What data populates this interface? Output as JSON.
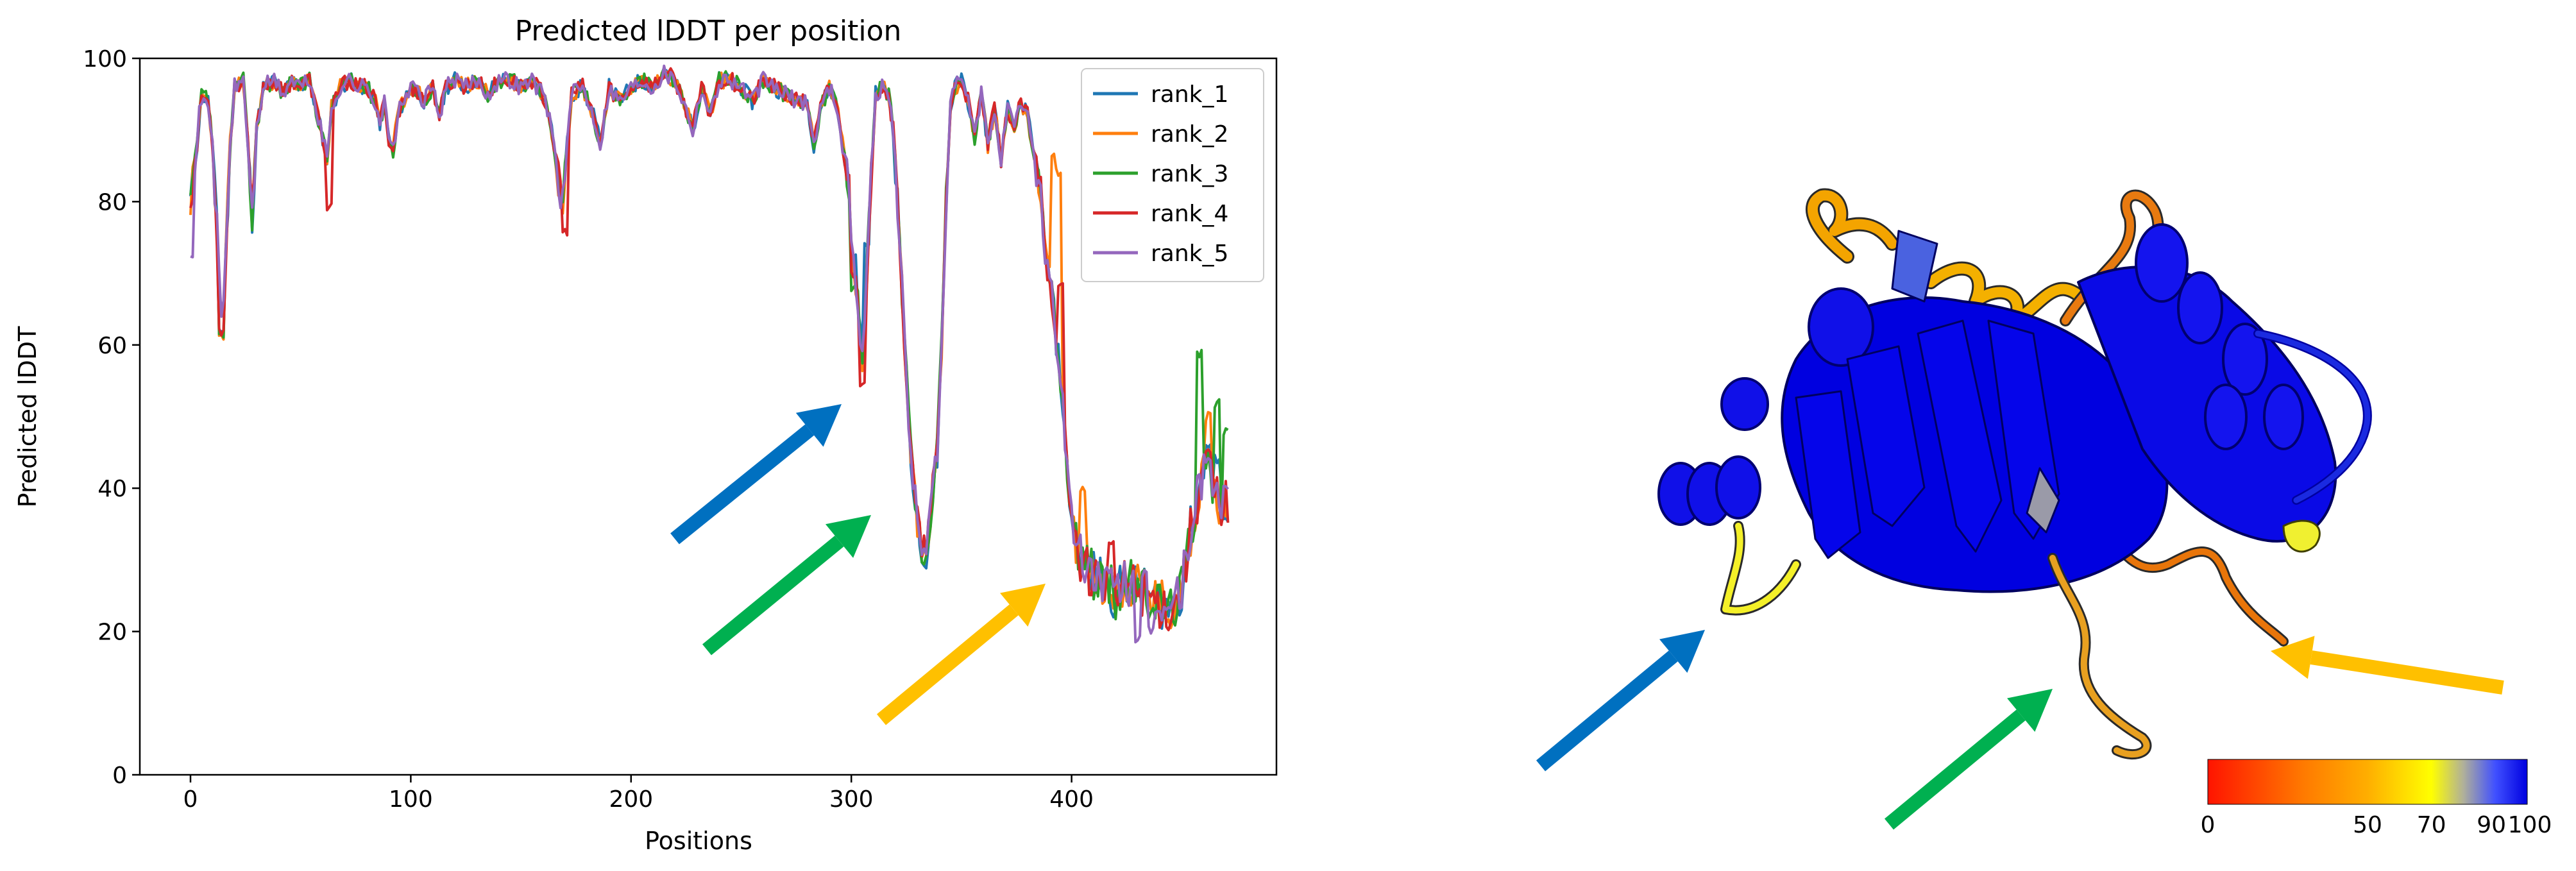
{
  "chart_data": {
    "type": "line",
    "title": "Predicted lDDT per position",
    "xlabel": "Positions",
    "ylabel": "Predicted lDDT",
    "xlim": [
      -23,
      493
    ],
    "ylim": [
      0,
      100
    ],
    "xticks": [
      0,
      100,
      200,
      300,
      400
    ],
    "yticks": [
      0,
      20,
      40,
      60,
      80,
      100
    ],
    "grid": false,
    "legend_position": "top-right",
    "profile_knots": [
      [
        0,
        80
      ],
      [
        3,
        88
      ],
      [
        5,
        95
      ],
      [
        8,
        94
      ],
      [
        10,
        88
      ],
      [
        12,
        76
      ],
      [
        14,
        63
      ],
      [
        16,
        72
      ],
      [
        18,
        88
      ],
      [
        20,
        96
      ],
      [
        24,
        97
      ],
      [
        26,
        88
      ],
      [
        28,
        78
      ],
      [
        30,
        90
      ],
      [
        33,
        96
      ],
      [
        38,
        97
      ],
      [
        42,
        95
      ],
      [
        46,
        97
      ],
      [
        50,
        96
      ],
      [
        54,
        97
      ],
      [
        57,
        93
      ],
      [
        60,
        89
      ],
      [
        62,
        86
      ],
      [
        64,
        93
      ],
      [
        68,
        96
      ],
      [
        72,
        97
      ],
      [
        76,
        96
      ],
      [
        80,
        96
      ],
      [
        84,
        94
      ],
      [
        86,
        91
      ],
      [
        88,
        94
      ],
      [
        90,
        89
      ],
      [
        92,
        87
      ],
      [
        94,
        92
      ],
      [
        98,
        95
      ],
      [
        102,
        96
      ],
      [
        106,
        94
      ],
      [
        110,
        96
      ],
      [
        113,
        92
      ],
      [
        116,
        96
      ],
      [
        120,
        97
      ],
      [
        125,
        96
      ],
      [
        130,
        97
      ],
      [
        135,
        95
      ],
      [
        140,
        97
      ],
      [
        145,
        97
      ],
      [
        150,
        96
      ],
      [
        155,
        97
      ],
      [
        160,
        95
      ],
      [
        163,
        92
      ],
      [
        165,
        88
      ],
      [
        167,
        83
      ],
      [
        169,
        80
      ],
      [
        171,
        88
      ],
      [
        173,
        95
      ],
      [
        178,
        96
      ],
      [
        183,
        92
      ],
      [
        186,
        88
      ],
      [
        190,
        96
      ],
      [
        195,
        94
      ],
      [
        200,
        96
      ],
      [
        205,
        97
      ],
      [
        210,
        96
      ],
      [
        215,
        98
      ],
      [
        220,
        97
      ],
      [
        225,
        93
      ],
      [
        228,
        90
      ],
      [
        232,
        96
      ],
      [
        236,
        92
      ],
      [
        240,
        97
      ],
      [
        245,
        97
      ],
      [
        250,
        96
      ],
      [
        255,
        94
      ],
      [
        260,
        97
      ],
      [
        265,
        96
      ],
      [
        270,
        95
      ],
      [
        275,
        94
      ],
      [
        280,
        94
      ],
      [
        283,
        88
      ],
      [
        286,
        93
      ],
      [
        290,
        96
      ],
      [
        293,
        94
      ],
      [
        296,
        88
      ],
      [
        299,
        82
      ],
      [
        301,
        70
      ],
      [
        303,
        66
      ],
      [
        305,
        58
      ],
      [
        307,
        70
      ],
      [
        309,
        84
      ],
      [
        311,
        95
      ],
      [
        314,
        96
      ],
      [
        317,
        95
      ],
      [
        319,
        90
      ],
      [
        321,
        80
      ],
      [
        323,
        68
      ],
      [
        325,
        55
      ],
      [
        327,
        45
      ],
      [
        329,
        38
      ],
      [
        331,
        33
      ],
      [
        333,
        31
      ],
      [
        335,
        34
      ],
      [
        337,
        40
      ],
      [
        339,
        45
      ],
      [
        341,
        60
      ],
      [
        343,
        80
      ],
      [
        345,
        93
      ],
      [
        347,
        96
      ],
      [
        350,
        97
      ],
      [
        353,
        94
      ],
      [
        356,
        89
      ],
      [
        359,
        95
      ],
      [
        362,
        88
      ],
      [
        365,
        93
      ],
      [
        368,
        86
      ],
      [
        371,
        93
      ],
      [
        374,
        90
      ],
      [
        377,
        94
      ],
      [
        380,
        92
      ],
      [
        383,
        86
      ],
      [
        386,
        82
      ],
      [
        388,
        72
      ],
      [
        390,
        70
      ],
      [
        392,
        64
      ],
      [
        394,
        58
      ],
      [
        396,
        52
      ],
      [
        398,
        42
      ],
      [
        400,
        36
      ],
      [
        403,
        31
      ],
      [
        406,
        29
      ],
      [
        410,
        28
      ],
      [
        415,
        27
      ],
      [
        420,
        25
      ],
      [
        425,
        27
      ],
      [
        430,
        26
      ],
      [
        435,
        25
      ],
      [
        440,
        24
      ],
      [
        445,
        23
      ],
      [
        450,
        26
      ],
      [
        454,
        34
      ],
      [
        458,
        40
      ],
      [
        461,
        45
      ],
      [
        464,
        40
      ],
      [
        468,
        38
      ],
      [
        471,
        38
      ]
    ],
    "series": [
      {
        "name": "rank_1",
        "color": "#1f77b4",
        "seed": 11,
        "peak": [
          [
            301,
            72
          ],
          [
            307,
            74
          ]
        ],
        "dips": [
          [
            333,
            29
          ],
          [
            14,
            62
          ]
        ],
        "spikes": [
          [
            462,
            46
          ],
          [
            466,
            44
          ]
        ]
      },
      {
        "name": "rank_2",
        "color": "#ff7f0e",
        "seed": 23,
        "peak": [
          [
            392,
            86
          ],
          [
            394,
            84
          ]
        ],
        "dips": [
          [
            333,
            31
          ],
          [
            14,
            61
          ]
        ],
        "spikes": [
          [
            405,
            40
          ],
          [
            462,
            50
          ]
        ]
      },
      {
        "name": "rank_3",
        "color": "#2ca02c",
        "seed": 37,
        "peak": [
          [
            6,
            95
          ],
          [
            301,
            68
          ]
        ],
        "dips": [
          [
            333,
            30
          ],
          [
            14,
            61
          ]
        ],
        "spikes": [
          [
            458,
            59
          ],
          [
            466,
            52
          ],
          [
            470,
            48
          ]
        ]
      },
      {
        "name": "rank_4",
        "color": "#d62728",
        "seed": 53,
        "peak": [
          [
            395,
            68
          ],
          [
            301,
            70
          ]
        ],
        "dips": [
          [
            305,
            54
          ],
          [
            63,
            79
          ],
          [
            170,
            76
          ],
          [
            14,
            62
          ]
        ],
        "spikes": [
          [
            418,
            32
          ],
          [
            462,
            45
          ]
        ]
      },
      {
        "name": "rank_5",
        "color": "#9467bd",
        "seed": 71,
        "peak": [
          [
            5,
            94
          ]
        ],
        "dips": [
          [
            0,
            73
          ],
          [
            333,
            31
          ],
          [
            430,
            19
          ],
          [
            436,
            20
          ]
        ],
        "spikes": [
          [
            470,
            40
          ]
        ]
      }
    ]
  },
  "colorbar": {
    "labels": [
      "0",
      "50",
      "70",
      "90",
      "100"
    ],
    "values": [
      0,
      50,
      70,
      90,
      100
    ],
    "stops": [
      {
        "value": 0,
        "color": "#ff1400"
      },
      {
        "value": 30,
        "color": "#ff7a00"
      },
      {
        "value": 50,
        "color": "#ffae00"
      },
      {
        "value": 70,
        "color": "#ffff00"
      },
      {
        "value": 80,
        "color": "#b0b09a"
      },
      {
        "value": 90,
        "color": "#4050ff"
      },
      {
        "value": 100,
        "color": "#0000e0"
      }
    ]
  },
  "arrows": [
    {
      "name": "blue-arrow",
      "color": "#0070c0"
    },
    {
      "name": "green-arrow",
      "color": "#00b050"
    },
    {
      "name": "yellow-arrow",
      "color": "#ffc000"
    }
  ],
  "structure": {
    "colors": {
      "very_high": "#0000e6",
      "confident": "#3a55e8",
      "low": "#f0e020",
      "very_low": "#e8750a",
      "orange": "#f4a400"
    }
  }
}
